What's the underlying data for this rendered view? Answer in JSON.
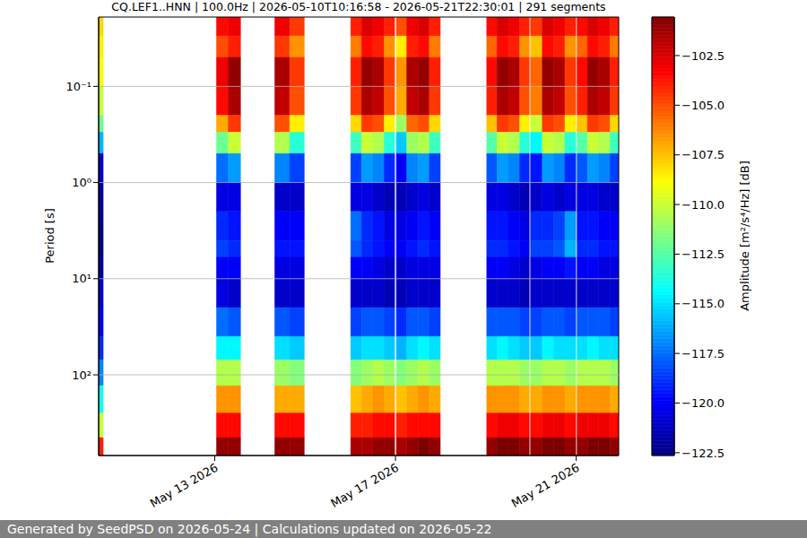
{
  "chart_data": {
    "type": "heatmap",
    "title": "CQ.LEF1..HNN | 100.0Hz | 2026-05-10T10:16:58 - 2026-05-21T22:30:01 | 291 segments",
    "y_label": "Period [s]",
    "footer": "Generated by SeedPSD on 2026-05-24 | Calculations updated on 2026-05-22",
    "xlim": [
      10.43,
      21.94
    ],
    "xticks": [
      {
        "value": 13,
        "label": "May 13 2026"
      },
      {
        "value": 17,
        "label": "May 17 2026"
      },
      {
        "value": 21,
        "label": "May 21 2026"
      }
    ],
    "ylim": [
      0.019,
      690
    ],
    "yticks": [
      {
        "value": 0.1,
        "label": "10⁻¹"
      },
      {
        "value": 1,
        "label": "10⁰"
      },
      {
        "value": 10,
        "label": "10¹"
      },
      {
        "value": 100,
        "label": "10²"
      }
    ],
    "log": "y",
    "grid": true,
    "x_bins": [
      10.43,
      10.53,
      13.04,
      13.3,
      13.57,
      14.33,
      14.66,
      14.98,
      16.01,
      16.25,
      16.5,
      16.75,
      16.98,
      17.02,
      17.25,
      17.5,
      17.75,
      17.99,
      19.02,
      19.25,
      19.5,
      19.75,
      19.96,
      19.99,
      20.25,
      20.5,
      20.75,
      20.99,
      21.02,
      21.25,
      21.5,
      21.75,
      21.94
    ],
    "y_bins": [
      0.019,
      0.03,
      0.05,
      0.1,
      0.2,
      0.3,
      0.5,
      1,
      2,
      4,
      6,
      10,
      20,
      40,
      70,
      130,
      250,
      450,
      690
    ],
    "cells": [
      [
        -108,
        -108.5,
        -109,
        -110,
        -112,
        -116,
        -121,
        -122,
        -122.5,
        -122.5,
        -122,
        -121,
        -120,
        -119,
        -117,
        -114,
        -110,
        -104
      ],
      null,
      [
        -103.5,
        -105,
        -103,
        -103.5,
        -107,
        -112,
        -117.5,
        -120.5,
        -119,
        -118.5,
        -120,
        -120.5,
        -117.5,
        -114.5,
        -110.5,
        -106.5,
        -103.5,
        -101
      ],
      [
        -103,
        -104,
        -101,
        -101.5,
        -104.5,
        -110,
        -116.5,
        -120.5,
        -119.5,
        -119,
        -120,
        -121,
        -118,
        -114.5,
        -110.5,
        -106.5,
        -103.5,
        -101
      ],
      null,
      [
        -103,
        -104.5,
        -101.5,
        -102,
        -105,
        -110.5,
        -117,
        -121,
        -120,
        -119.5,
        -120.5,
        -121,
        -118,
        -115,
        -111,
        -107,
        -103.5,
        -101
      ],
      [
        -104.5,
        -106.5,
        -104.5,
        -105,
        -108.5,
        -113.5,
        -118.5,
        -121,
        -120,
        -119.5,
        -120.5,
        -121,
        -118.5,
        -115.5,
        -111.5,
        -107,
        -103.5,
        -101
      ],
      null,
      [
        -104,
        -106,
        -104,
        -104.5,
        -108,
        -113,
        -118.5,
        -120.5,
        -117.5,
        -118,
        -120,
        -121,
        -118.5,
        -115.5,
        -111.5,
        -107.5,
        -104,
        -101.5
      ],
      [
        -102.5,
        -103.5,
        -101,
        -101.5,
        -104.5,
        -110,
        -116.5,
        -120.5,
        -119,
        -119,
        -120,
        -121,
        -118,
        -115,
        -111,
        -107,
        -104,
        -101.5
      ],
      [
        -103,
        -104,
        -101.5,
        -102,
        -105,
        -110.5,
        -117,
        -121,
        -119.5,
        -119.5,
        -120.5,
        -121,
        -118,
        -115,
        -110.5,
        -106.5,
        -103.5,
        -101
      ],
      [
        -104,
        -106.5,
        -104.5,
        -105,
        -108.5,
        -113.5,
        -119,
        -121.5,
        -120.5,
        -120,
        -121,
        -121.5,
        -118.5,
        -115.5,
        -111,
        -107,
        -103.5,
        -101
      ],
      null,
      [
        -105,
        -108.5,
        -106.5,
        -107,
        -111,
        -115.5,
        -120,
        -121.5,
        -120.5,
        -120,
        -121,
        -121.5,
        -119,
        -116,
        -111.5,
        -107.5,
        -104,
        -101.5
      ],
      [
        -103,
        -104,
        -101.5,
        -102,
        -105.5,
        -111,
        -117,
        -121,
        -120,
        -119.5,
        -120.5,
        -121,
        -118,
        -115,
        -111,
        -107,
        -103.5,
        -101
      ],
      [
        -102.5,
        -103.5,
        -101,
        -101.5,
        -105,
        -110.5,
        -116.5,
        -120.5,
        -119.5,
        -119,
        -120.5,
        -121,
        -118,
        -114.5,
        -110.5,
        -106.5,
        -103.5,
        -100.5
      ],
      [
        -104,
        -106,
        -104,
        -104.5,
        -108,
        -113,
        -118.5,
        -121,
        -120,
        -119.5,
        -120.5,
        -121,
        -118.5,
        -115,
        -111,
        -107,
        -103.5,
        -101
      ],
      null,
      [
        -103.5,
        -105.5,
        -103.5,
        -104,
        -107.5,
        -112.5,
        -118,
        -120.5,
        -119.5,
        -119,
        -120,
        -121,
        -118,
        -115,
        -110.5,
        -106.5,
        -103.5,
        -101
      ],
      [
        -102.5,
        -103.5,
        -101,
        -101.5,
        -104.5,
        -110,
        -116.5,
        -120.5,
        -119.5,
        -119,
        -120,
        -121,
        -118,
        -114.5,
        -110.5,
        -106.5,
        -103,
        -100.5
      ],
      [
        -103,
        -104,
        -101.5,
        -102,
        -105,
        -110.5,
        -117,
        -121,
        -120,
        -119.5,
        -120.5,
        -121,
        -118,
        -115,
        -110.5,
        -106.5,
        -103,
        -100.5
      ],
      [
        -104,
        -106.5,
        -104.5,
        -105,
        -108.5,
        -113.5,
        -119,
        -121.5,
        -120.5,
        -120,
        -121,
        -121.5,
        -118.5,
        -115.5,
        -111,
        -107,
        -103.5,
        -101
      ],
      null,
      [
        -104.5,
        -107.5,
        -105.5,
        -106,
        -110,
        -114.5,
        -119.5,
        -121,
        -119,
        -118.5,
        -120.5,
        -121,
        -118.5,
        -115.5,
        -111,
        -107,
        -103.5,
        -101
      ],
      [
        -102.5,
        -103.5,
        -101,
        -101.5,
        -104.5,
        -110,
        -116.5,
        -120.5,
        -119,
        -118.5,
        -120,
        -121,
        -118,
        -114.5,
        -110.5,
        -106.5,
        -103,
        -100.5
      ],
      [
        -103,
        -104,
        -101.5,
        -102,
        -105,
        -110.5,
        -117,
        -121,
        -118.5,
        -118,
        -120,
        -121,
        -118,
        -115,
        -110.5,
        -106.5,
        -103,
        -100.5
      ],
      [
        -104,
        -106.5,
        -104.5,
        -105,
        -108.5,
        -113.5,
        -119,
        -120.5,
        -116.5,
        -116,
        -119.5,
        -121,
        -118.5,
        -115,
        -111,
        -107,
        -103.5,
        -101
      ],
      null,
      [
        -103.5,
        -105.5,
        -103.5,
        -104,
        -107.5,
        -112.5,
        -118,
        -120.5,
        -119.5,
        -119,
        -120,
        -121,
        -118,
        -115,
        -110.5,
        -106.5,
        -103,
        -101
      ],
      [
        -102.5,
        -103.5,
        -101,
        -101.5,
        -104.5,
        -110,
        -116.5,
        -120.5,
        -119.5,
        -119,
        -120,
        -121,
        -118,
        -114.5,
        -110.5,
        -106.5,
        -103,
        -100.5
      ],
      [
        -103,
        -104,
        -101.5,
        -102,
        -105,
        -110.5,
        -117,
        -121,
        -120,
        -119.5,
        -120.5,
        -121,
        -118,
        -115,
        -110.5,
        -106.5,
        -103,
        -100.5
      ],
      [
        -104,
        -106,
        -104,
        -104.5,
        -108,
        -113,
        -118.5,
        -121,
        -120,
        -119.5,
        -120.5,
        -121,
        -118.5,
        -115,
        -111,
        -107,
        -103.5,
        -101
      ]
    ],
    "colorbar": {
      "label": "Amplitude [m²/s⁴/Hz] [dB]",
      "range": [
        -122.64,
        -100.56
      ],
      "ticks": [
        {
          "value": -102.5,
          "label": "−102.5"
        },
        {
          "value": -105,
          "label": "−105.0"
        },
        {
          "value": -107.5,
          "label": "−107.5"
        },
        {
          "value": -110,
          "label": "−110.0"
        },
        {
          "value": -112.5,
          "label": "−112.5"
        },
        {
          "value": -115,
          "label": "−115.0"
        },
        {
          "value": -117.5,
          "label": "−117.5"
        },
        {
          "value": -120,
          "label": "−120.0"
        },
        {
          "value": -122.5,
          "label": "−122.5"
        }
      ]
    }
  }
}
